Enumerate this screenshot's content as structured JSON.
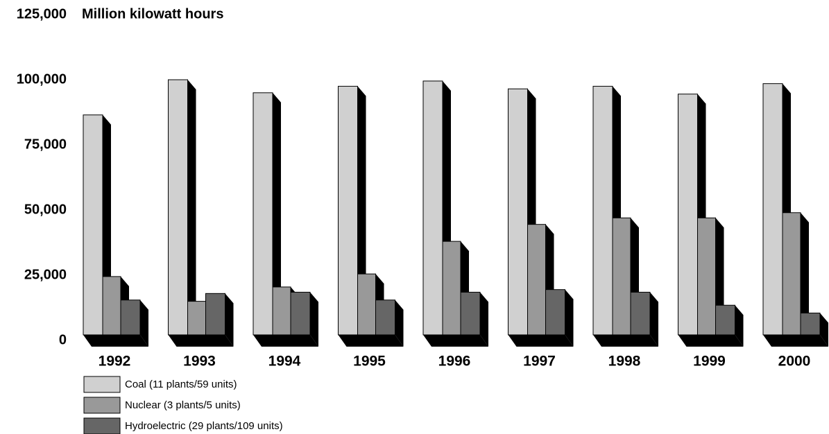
{
  "chart_data": {
    "type": "bar",
    "title": "Million kilowatt hours",
    "categories": [
      "1992",
      "1993",
      "1994",
      "1995",
      "1996",
      "1997",
      "1998",
      "1999",
      "2000"
    ],
    "series": [
      {
        "name": "Coal (11 plants/59 units)",
        "color": "#d0d0d0",
        "values": [
          86500,
          100000,
          95000,
          97500,
          99500,
          96500,
          97500,
          94500,
          98500
        ]
      },
      {
        "name": "Nuclear (3 plants/5 units)",
        "color": "#999999",
        "values": [
          24500,
          15000,
          20500,
          25500,
          38000,
          44500,
          47000,
          47000,
          49000
        ]
      },
      {
        "name": "Hydroelectric (29 plants/109 units)",
        "color": "#666666",
        "values": [
          15500,
          18000,
          18500,
          15500,
          18500,
          19500,
          18500,
          13500,
          10500
        ]
      }
    ],
    "ylim": [
      0,
      125000
    ],
    "yticks": [
      0,
      {
        "value": 25000,
        "label": "25,000"
      },
      {
        "value": 50000,
        "label": "50,000"
      },
      {
        "value": 75000,
        "label": "75,000"
      },
      {
        "value": 100000,
        "label": "100,000"
      },
      {
        "value": 125000,
        "label": "125,000"
      }
    ],
    "grid": false
  }
}
